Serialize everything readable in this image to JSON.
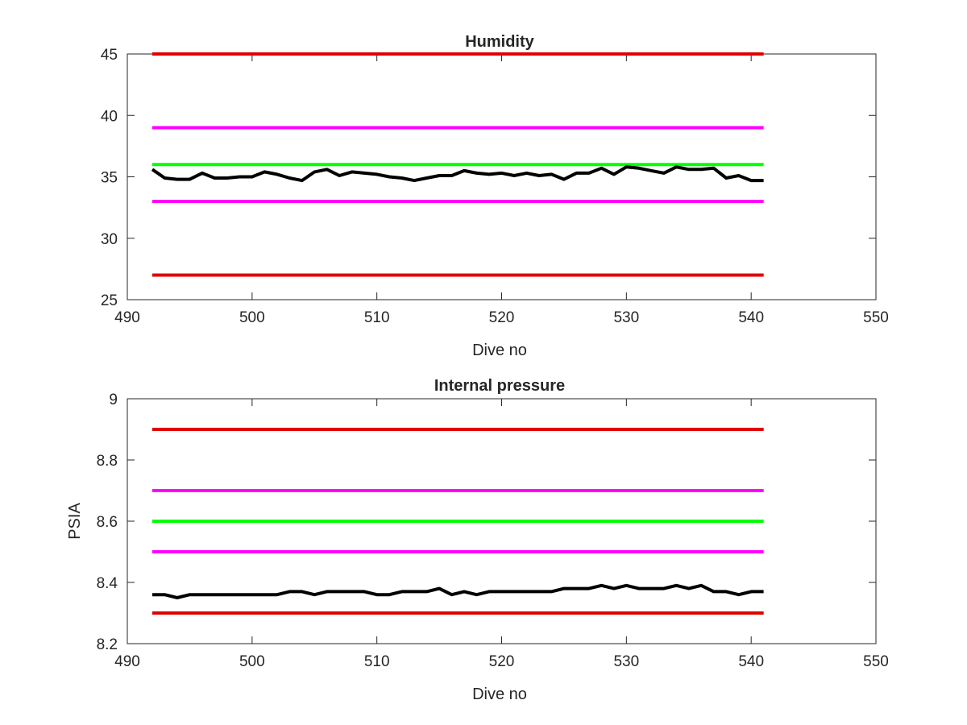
{
  "chart_data": [
    {
      "type": "line",
      "title": "Humidity",
      "xlabel": "Dive no",
      "ylabel": "",
      "xlim": [
        490,
        550
      ],
      "ylim": [
        25,
        45
      ],
      "xticks": [
        490,
        500,
        510,
        520,
        530,
        540,
        550
      ],
      "yticks": [
        25,
        30,
        35,
        40,
        45
      ],
      "grid": false,
      "x": [
        492,
        493,
        494,
        495,
        496,
        497,
        498,
        499,
        500,
        501,
        502,
        503,
        504,
        505,
        506,
        507,
        508,
        509,
        510,
        511,
        512,
        513,
        514,
        515,
        516,
        517,
        518,
        519,
        520,
        521,
        522,
        523,
        524,
        525,
        526,
        527,
        528,
        529,
        530,
        531,
        532,
        533,
        534,
        535,
        536,
        537,
        538,
        539,
        540,
        541
      ],
      "series": [
        {
          "color": "#000000",
          "values": [
            35.6,
            34.9,
            34.8,
            34.8,
            35.3,
            34.9,
            34.9,
            35.0,
            35.0,
            35.4,
            35.2,
            34.9,
            34.7,
            35.4,
            35.6,
            35.1,
            35.4,
            35.3,
            35.2,
            35.0,
            34.9,
            34.7,
            34.9,
            35.1,
            35.1,
            35.5,
            35.3,
            35.2,
            35.3,
            35.1,
            35.3,
            35.1,
            35.2,
            34.8,
            35.3,
            35.3,
            35.7,
            35.2,
            35.8,
            35.7,
            35.5,
            35.3,
            35.8,
            35.6,
            35.6,
            35.7,
            34.9,
            35.1,
            34.7,
            34.7
          ]
        }
      ],
      "reference_lines": [
        {
          "y": 45,
          "color": "#e00000",
          "x_range": [
            492,
            541
          ]
        },
        {
          "y": 39,
          "color": "#ff00ff",
          "x_range": [
            492,
            541
          ]
        },
        {
          "y": 36,
          "color": "#00ff00",
          "x_range": [
            492,
            541
          ]
        },
        {
          "y": 33,
          "color": "#ff00ff",
          "x_range": [
            492,
            541
          ]
        },
        {
          "y": 27,
          "color": "#e00000",
          "x_range": [
            492,
            541
          ]
        }
      ]
    },
    {
      "type": "line",
      "title": "Internal pressure",
      "xlabel": "Dive no",
      "ylabel": "PSIA",
      "xlim": [
        490,
        550
      ],
      "ylim": [
        8.2,
        9
      ],
      "xticks": [
        490,
        500,
        510,
        520,
        530,
        540,
        550
      ],
      "yticks": [
        8.2,
        8.4,
        8.6,
        8.8,
        9
      ],
      "grid": false,
      "x": [
        492,
        493,
        494,
        495,
        496,
        497,
        498,
        499,
        500,
        501,
        502,
        503,
        504,
        505,
        506,
        507,
        508,
        509,
        510,
        511,
        512,
        513,
        514,
        515,
        516,
        517,
        518,
        519,
        520,
        521,
        522,
        523,
        524,
        525,
        526,
        527,
        528,
        529,
        530,
        531,
        532,
        533,
        534,
        535,
        536,
        537,
        538,
        539,
        540,
        541
      ],
      "series": [
        {
          "color": "#000000",
          "values": [
            8.36,
            8.36,
            8.35,
            8.36,
            8.36,
            8.36,
            8.36,
            8.36,
            8.36,
            8.36,
            8.36,
            8.37,
            8.37,
            8.36,
            8.37,
            8.37,
            8.37,
            8.37,
            8.36,
            8.36,
            8.37,
            8.37,
            8.37,
            8.38,
            8.36,
            8.37,
            8.36,
            8.37,
            8.37,
            8.37,
            8.37,
            8.37,
            8.37,
            8.38,
            8.38,
            8.38,
            8.39,
            8.38,
            8.39,
            8.38,
            8.38,
            8.38,
            8.39,
            8.38,
            8.39,
            8.37,
            8.37,
            8.36,
            8.37,
            8.37
          ]
        }
      ],
      "reference_lines": [
        {
          "y": 8.9,
          "color": "#e00000",
          "x_range": [
            492,
            541
          ]
        },
        {
          "y": 8.7,
          "color": "#ff00ff",
          "x_range": [
            492,
            541
          ]
        },
        {
          "y": 8.6,
          "color": "#00ff00",
          "x_range": [
            492,
            541
          ]
        },
        {
          "y": 8.5,
          "color": "#ff00ff",
          "x_range": [
            492,
            541
          ]
        },
        {
          "y": 8.3,
          "color": "#e00000",
          "x_range": [
            492,
            541
          ]
        }
      ]
    }
  ]
}
